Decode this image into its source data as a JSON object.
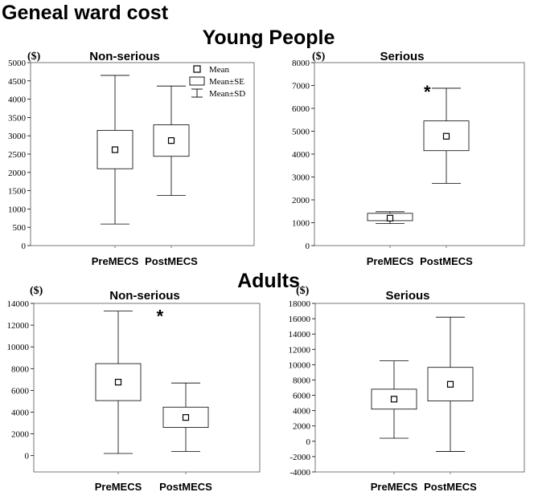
{
  "figure": {
    "title": "Geneal ward cost",
    "section_top": "Young People",
    "section_bottom": "Adults"
  },
  "legend": {
    "items": [
      {
        "label": "Mean",
        "symbol": "mean"
      },
      {
        "label": "Mean±SE",
        "symbol": "se"
      },
      {
        "label": "Mean±SD",
        "symbol": "sd"
      }
    ]
  },
  "chart_data": [
    {
      "type": "box",
      "group": "Young People",
      "title": "Non-serious",
      "ylabel": "($)",
      "ylim": [
        0,
        5000
      ],
      "yticks": [
        0,
        500,
        1000,
        1500,
        2000,
        2500,
        3000,
        3500,
        4000,
        4500,
        5000
      ],
      "categories": [
        "PreMECS",
        "PostMECS"
      ],
      "boxes": [
        {
          "mean": 2620,
          "se_low": 2100,
          "se_high": 3150,
          "sd_low": 590,
          "sd_high": 4650
        },
        {
          "mean": 2870,
          "se_low": 2440,
          "se_high": 3300,
          "sd_low": 1370,
          "sd_high": 4360
        }
      ],
      "significance": []
    },
    {
      "type": "box",
      "group": "Young People",
      "title": "Serious",
      "ylabel": "($)",
      "ylim": [
        0,
        8000
      ],
      "yticks": [
        0,
        1000,
        2000,
        3000,
        4000,
        5000,
        6000,
        7000,
        8000
      ],
      "categories": [
        "PreMECS",
        "PostMECS"
      ],
      "boxes": [
        {
          "mean": 1200,
          "se_low": 1090,
          "se_high": 1410,
          "sd_low": 960,
          "sd_high": 1480
        },
        {
          "mean": 4780,
          "se_low": 4150,
          "se_high": 5450,
          "sd_low": 2720,
          "sd_high": 6880
        }
      ],
      "significance": [
        {
          "mark": "*",
          "category": 1,
          "y": 6950
        }
      ]
    },
    {
      "type": "box",
      "group": "Adults",
      "title": "Non-serious",
      "ylabel": "($)",
      "ylim": [
        -1500,
        14000
      ],
      "yticks": [
        0,
        2000,
        4000,
        6000,
        8000,
        10000,
        12000,
        14000
      ],
      "categories": [
        "PreMECS",
        "PostMECS"
      ],
      "boxes": [
        {
          "mean": 6760,
          "se_low": 5060,
          "se_high": 8460,
          "sd_low": 200,
          "sd_high": 13290
        },
        {
          "mean": 3510,
          "se_low": 2600,
          "se_high": 4460,
          "sd_low": 380,
          "sd_high": 6680
        }
      ],
      "significance": [
        {
          "mark": "*",
          "category": 0.9,
          "y": 13300
        }
      ]
    },
    {
      "type": "box",
      "group": "Adults",
      "title": "Serious",
      "ylabel": "($)",
      "ylim": [
        -4000,
        18000
      ],
      "yticks": [
        -4000,
        -2000,
        0,
        2000,
        4000,
        6000,
        8000,
        10000,
        12000,
        14000,
        16000,
        18000
      ],
      "categories": [
        "PreMECS",
        "PostMECS"
      ],
      "boxes": [
        {
          "mean": 5500,
          "se_low": 4200,
          "se_high": 6800,
          "sd_low": 400,
          "sd_high": 10500
        },
        {
          "mean": 7440,
          "se_low": 5260,
          "se_high": 9650,
          "sd_low": -1320,
          "sd_high": 16200
        }
      ],
      "significance": []
    }
  ]
}
